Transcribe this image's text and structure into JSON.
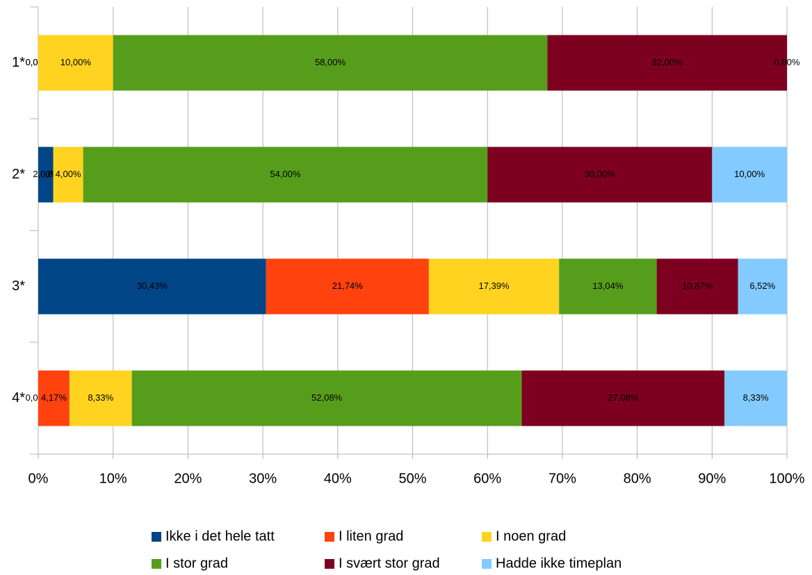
{
  "chart_data": {
    "type": "stacked_barh",
    "categories": [
      "1*",
      "2*",
      "3*",
      "4*"
    ],
    "series": [
      {
        "name": "Ikke i det hele tatt",
        "color": "#004586",
        "values": [
          0,
          2,
          30.43,
          0
        ],
        "value_labels": [
          "0,00%",
          "2,00%",
          "30,43%",
          "0,00%"
        ]
      },
      {
        "name": "I liten grad",
        "color": "#ff420e",
        "values": [
          0,
          0,
          21.74,
          4.17
        ],
        "value_labels": [
          "0,00%",
          "0,00%",
          "21,74%",
          "4,17%"
        ]
      },
      {
        "name": "I noen grad",
        "color": "#ffd320",
        "values": [
          10,
          4,
          17.39,
          8.33
        ],
        "value_labels": [
          "10,00%",
          "4,00%",
          "17,39%",
          "8,33%"
        ]
      },
      {
        "name": "I stor grad",
        "color": "#579d1c",
        "values": [
          58,
          54,
          13.04,
          52.08
        ],
        "value_labels": [
          "58,00%",
          "54,00%",
          "13,04%",
          "52,08%"
        ]
      },
      {
        "name": "I svært stor grad",
        "color": "#7e0021",
        "values": [
          32,
          30,
          10.87,
          27.08
        ],
        "value_labels": [
          "32,00%",
          "30,00%",
          "10,87%",
          "27,08%"
        ]
      },
      {
        "name": "Hadde ikke timeplan",
        "color": "#83caff",
        "values": [
          0,
          10,
          6.52,
          8.33
        ],
        "value_labels": [
          "0,00%",
          "10,00%",
          "6,52%",
          "8,33%"
        ]
      }
    ],
    "xlim": [
      0,
      100
    ],
    "xticks": [
      {
        "value": 0,
        "label": "0%"
      },
      {
        "value": 10,
        "label": "10%"
      },
      {
        "value": 20,
        "label": "20%"
      },
      {
        "value": 30,
        "label": "30%"
      },
      {
        "value": 40,
        "label": "40%"
      },
      {
        "value": 50,
        "label": "50%"
      },
      {
        "value": 60,
        "label": "60%"
      },
      {
        "value": 70,
        "label": "70%"
      },
      {
        "value": 80,
        "label": "80%"
      },
      {
        "value": 90,
        "label": "90%"
      },
      {
        "value": 100,
        "label": "100%"
      }
    ],
    "grid": true,
    "legend": "bottom"
  }
}
